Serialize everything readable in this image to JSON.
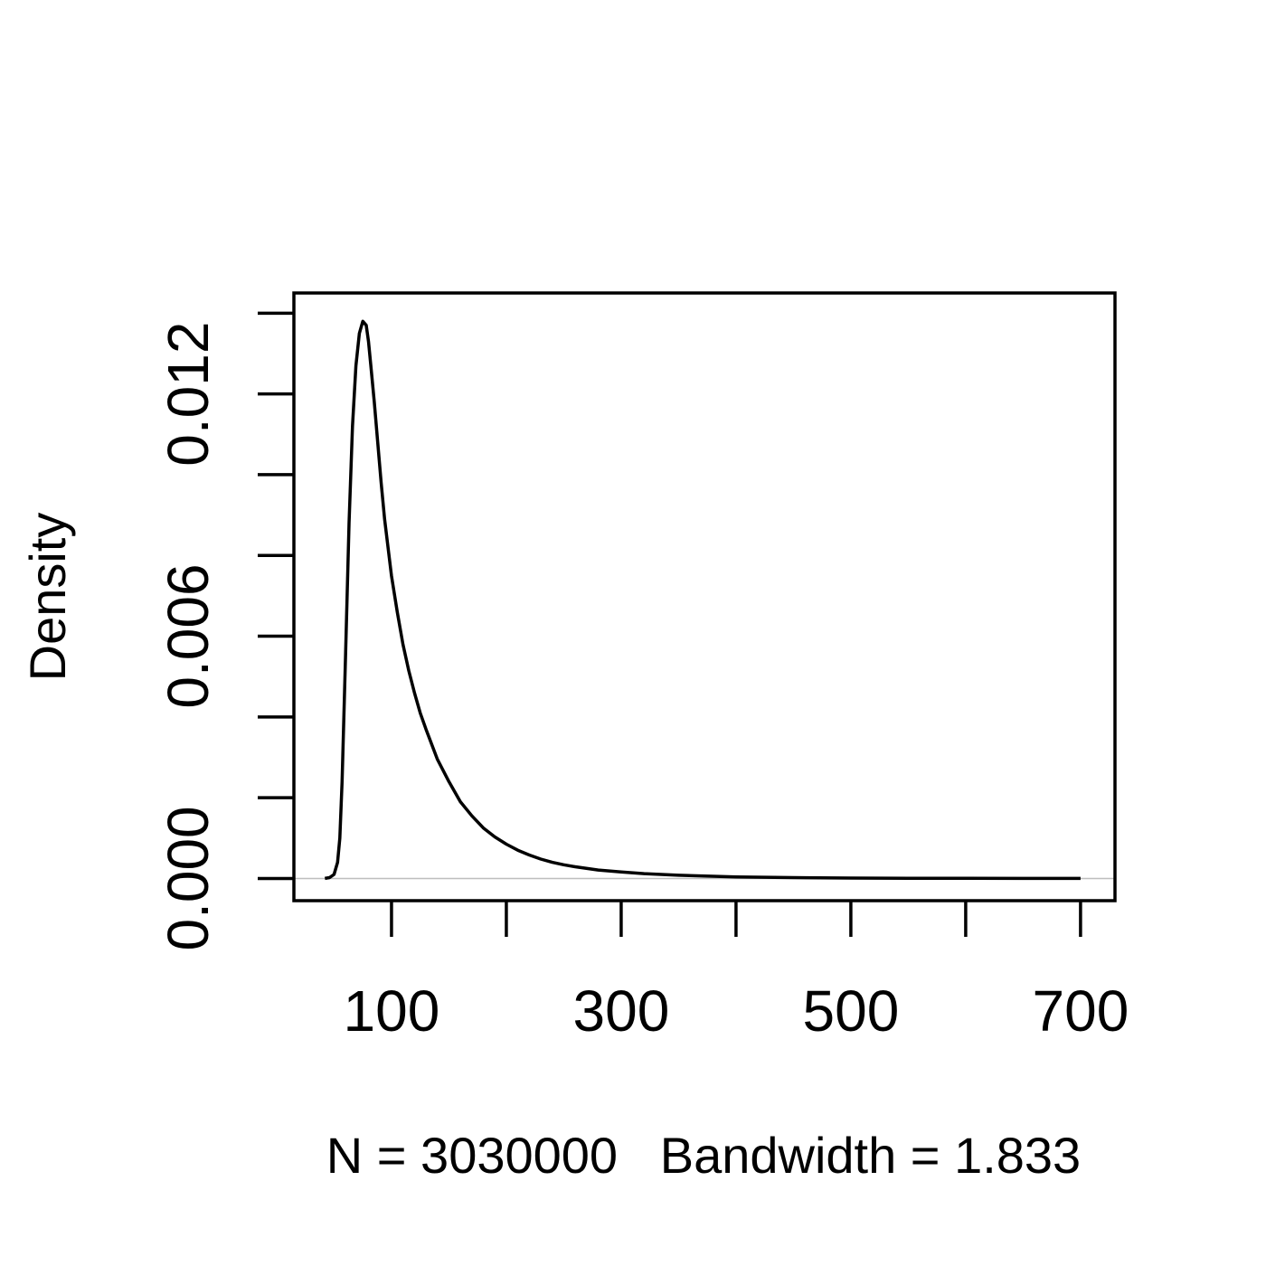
{
  "chart_data": {
    "type": "line",
    "title": "",
    "xlabel": "N = 3030000   Bandwidth = 1.833",
    "ylabel": "Density",
    "xlim": [
      15,
      730
    ],
    "ylim": [
      -0.00055,
      0.0145
    ],
    "x_ticks": [
      100,
      200,
      300,
      400,
      500,
      600,
      700
    ],
    "x_tick_labels": [
      "100",
      "",
      "300",
      "",
      "500",
      "",
      "700"
    ],
    "y_ticks": [
      0.0,
      0.002,
      0.004,
      0.006,
      0.008,
      0.01,
      0.012,
      0.014
    ],
    "y_tick_labels": [
      "0.000",
      "",
      "",
      "0.006",
      "",
      "",
      "0.012",
      ""
    ],
    "baseline": 0,
    "grid": false,
    "series": [
      {
        "values_x": [
          42,
          46,
          50,
          53,
          55,
          57,
          60,
          63,
          66,
          69,
          72,
          75,
          78,
          80,
          82,
          85,
          88,
          91,
          94,
          97,
          100,
          105,
          110,
          115,
          120,
          125,
          130,
          140,
          150,
          160,
          170,
          180,
          190,
          200,
          210,
          220,
          230,
          240,
          250,
          260,
          280,
          300,
          320,
          350,
          400,
          450,
          500,
          550,
          600,
          650,
          700
        ],
        "values_y": [
          0.0,
          2e-05,
          0.0001,
          0.0004,
          0.001,
          0.0024,
          0.0055,
          0.0088,
          0.0112,
          0.0127,
          0.0135,
          0.0138,
          0.0137,
          0.0133,
          0.0127,
          0.0118,
          0.0108,
          0.0098,
          0.0089,
          0.0082,
          0.0075,
          0.0066,
          0.0058,
          0.00515,
          0.0046,
          0.0041,
          0.0037,
          0.00295,
          0.0024,
          0.0019,
          0.00155,
          0.00125,
          0.00103,
          0.00085,
          0.0007,
          0.00058,
          0.00048,
          0.0004,
          0.00034,
          0.00029,
          0.00021,
          0.00016,
          0.00012,
          8e-05,
          4e-05,
          2e-05,
          1e-05,
          6e-06,
          4e-06,
          2e-06,
          1e-06
        ]
      }
    ]
  }
}
